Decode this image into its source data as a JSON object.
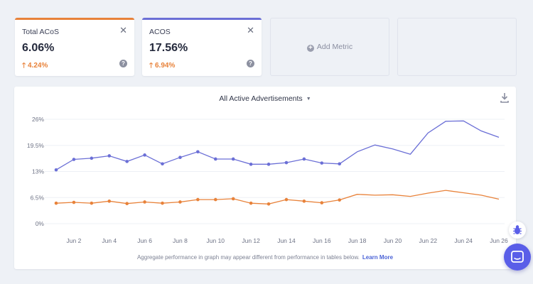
{
  "metrics": [
    {
      "title": "Total ACoS",
      "value": "6.06%",
      "change": "4.24%",
      "color": "#e8823a"
    },
    {
      "title": "ACOS",
      "value": "17.56%",
      "change": "6.94%",
      "color": "#6b6fd6"
    }
  ],
  "add_metric_label": "Add Metric",
  "chart": {
    "header": "All Active Advertisements",
    "footnote": "Aggregate performance in graph may appear different from performance in tables below.",
    "learn_more": "Learn More"
  },
  "chart_data": {
    "type": "line",
    "x": [
      "Jun 1",
      "Jun 2",
      "Jun 3",
      "Jun 4",
      "Jun 5",
      "Jun 6",
      "Jun 7",
      "Jun 8",
      "Jun 9",
      "Jun 10",
      "Jun 11",
      "Jun 12",
      "Jun 13",
      "Jun 14",
      "Jun 15",
      "Jun 16",
      "Jun 17",
      "Jun 18",
      "Jun 19",
      "Jun 20",
      "Jun 21",
      "Jun 22",
      "Jun 23",
      "Jun 24",
      "Jun 25",
      "Jun 26"
    ],
    "x_tick_labels": [
      "Jun 2",
      "Jun 4",
      "Jun 6",
      "Jun 8",
      "Jun 10",
      "Jun 12",
      "Jun 14",
      "Jun 16",
      "Jun 18",
      "Jun 20",
      "Jun 22",
      "Jun 24",
      "Jun 26"
    ],
    "y_tick_labels": [
      "0%",
      "6.5%",
      "13%",
      "19.5%",
      "26%"
    ],
    "ylim": [
      0,
      26
    ],
    "series": [
      {
        "name": "ACOS",
        "color": "#6b6fd6",
        "markers": true,
        "values": [
          13.4,
          16.0,
          16.3,
          16.9,
          15.5,
          17.1,
          14.9,
          16.5,
          17.9,
          16.1,
          16.1,
          14.8,
          14.8,
          15.2,
          16.1,
          15.1,
          14.9,
          17.9,
          19.6,
          18.6,
          17.3,
          22.6,
          25.5,
          25.6,
          23.1,
          21.5
        ]
      },
      {
        "name": "Total ACoS",
        "color": "#e8823a",
        "markers": true,
        "values": [
          5.1,
          5.3,
          5.1,
          5.6,
          5.0,
          5.4,
          5.1,
          5.4,
          6.0,
          6.0,
          6.2,
          5.1,
          4.9,
          6.0,
          5.6,
          5.2,
          5.9,
          7.3,
          7.1,
          7.2,
          6.8,
          7.6,
          8.3,
          7.7,
          7.1,
          6.1
        ]
      }
    ],
    "markers_until_index": 16,
    "grid": true
  }
}
